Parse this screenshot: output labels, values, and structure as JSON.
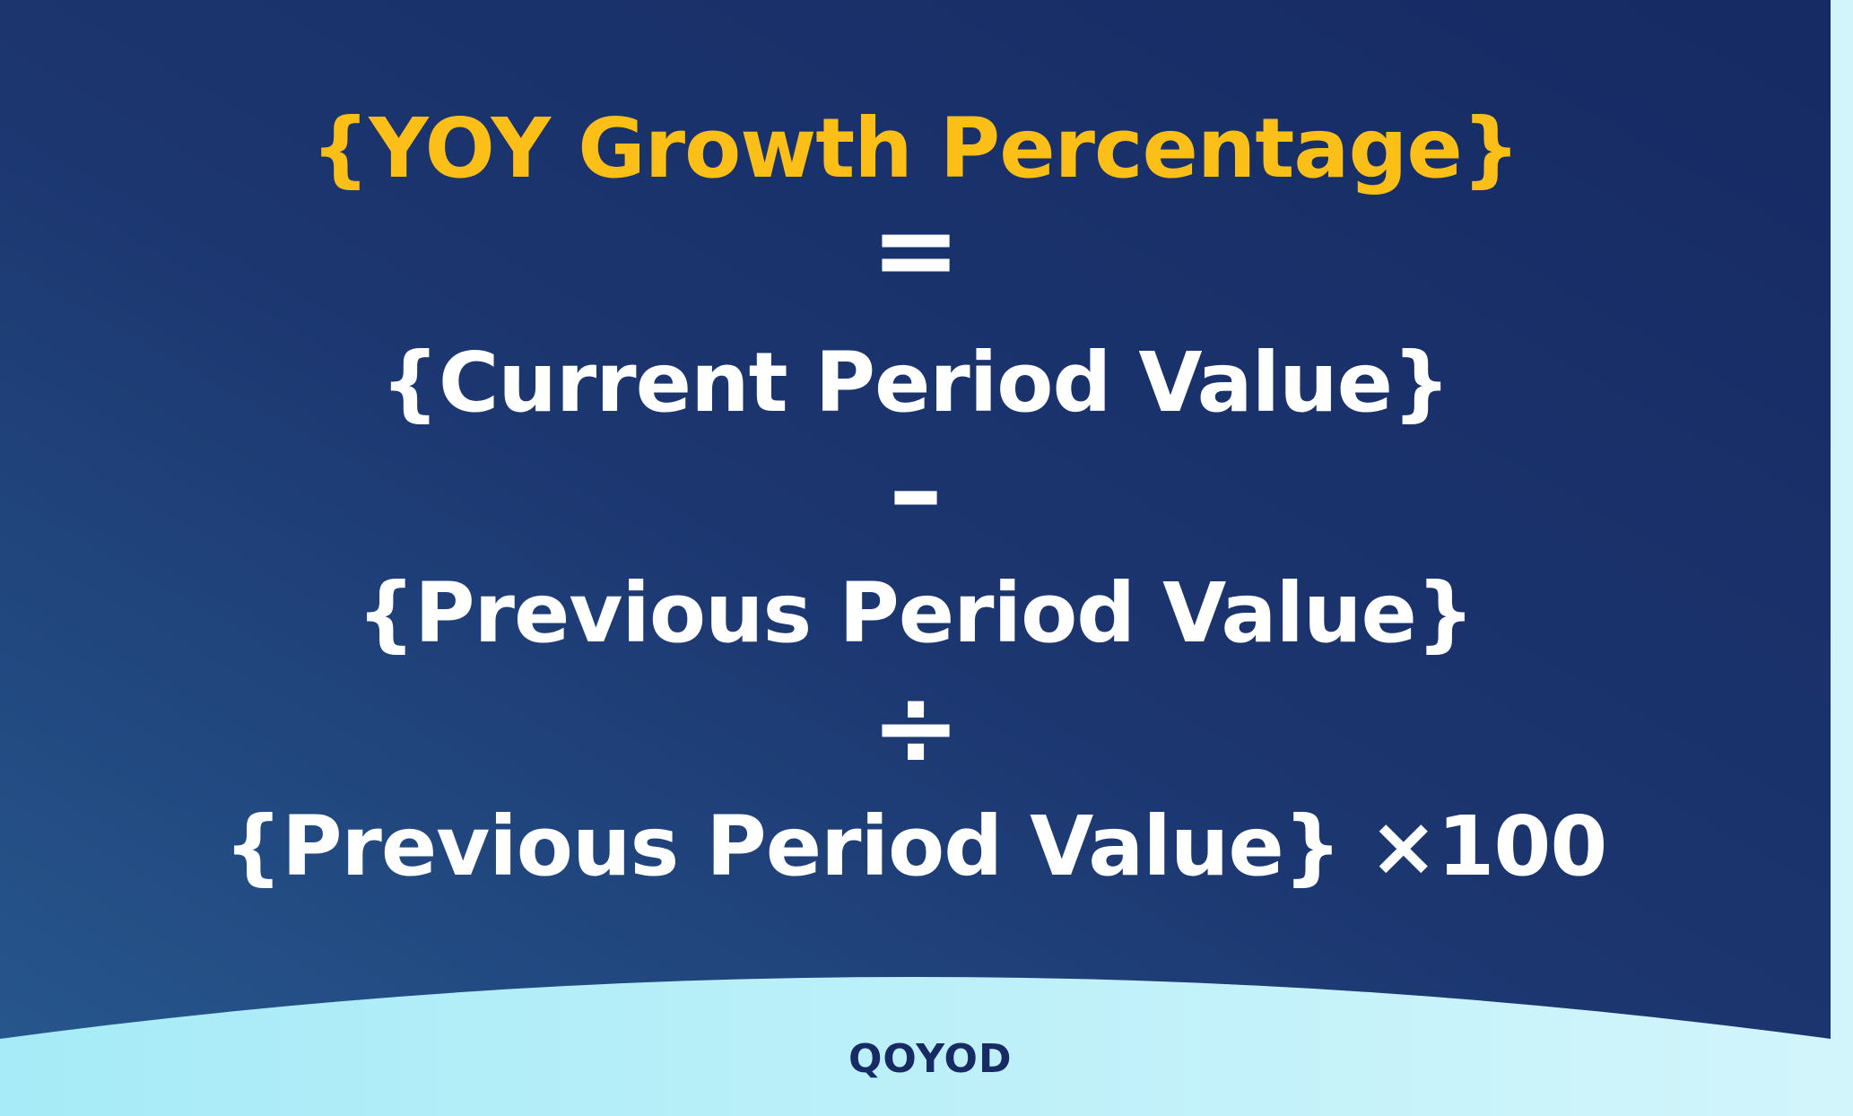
{
  "formula": {
    "title": "{YOY Growth Percentage}",
    "equals": "=",
    "line_current": "{Current Period Value}",
    "minus": "–",
    "line_previous": "{Previous Period Value}",
    "divide": "÷",
    "line_previous_times": "{Previous Period Value} ×100"
  },
  "brand": {
    "logo_text": "QOYOD"
  },
  "colors": {
    "title": "#fbbf17",
    "panel_dark": "#172a63",
    "panel_light": "#25538a",
    "footer": "#b2eef8",
    "text": "#ffffff"
  }
}
